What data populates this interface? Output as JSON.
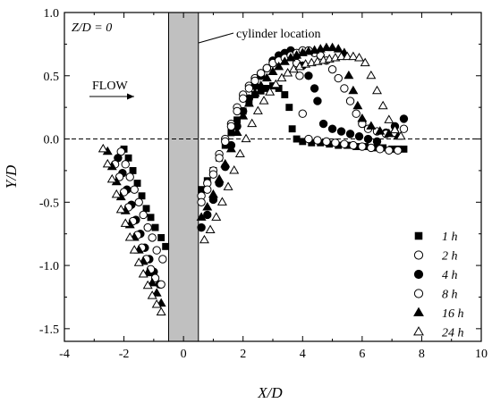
{
  "chart_data": {
    "type": "scatter",
    "title": "",
    "xlabel": "X/D",
    "ylabel": "Y/D",
    "xlim": [
      -4,
      10
    ],
    "ylim": [
      -1.6,
      1.0
    ],
    "xticks": [
      -4,
      -2,
      0,
      2,
      4,
      6,
      8,
      10
    ],
    "yticks": [
      -1.5,
      -1.0,
      -0.5,
      0.0,
      0.5,
      1.0
    ],
    "ytick_labels": [
      "-1.5",
      "-1.0",
      "-0.5",
      "0.0",
      "0.5",
      "1.0"
    ],
    "grid": false,
    "legend_position": "bottom-right",
    "zero_line": {
      "y": 0,
      "style": "dashed"
    },
    "cylinder_band": {
      "x": [
        -0.5,
        0.5
      ],
      "color": "#c0c0c0"
    },
    "annotations": {
      "condition": "Z/D = 0",
      "cylinder_label": "cylinder location",
      "flow_label": "FLOW"
    },
    "series": [
      {
        "name": "1 h",
        "marker": "square",
        "filled": true,
        "x": [
          -2.0,
          -1.85,
          -1.7,
          -1.55,
          -1.4,
          -1.25,
          -1.1,
          -0.95,
          -0.75,
          -0.6,
          0.6,
          0.8,
          1.0,
          1.2,
          1.4,
          1.6,
          1.8,
          2.0,
          2.2,
          2.4,
          2.6,
          2.8,
          3.0,
          3.2,
          3.4,
          3.55,
          3.65,
          3.8,
          4.0,
          4.3,
          4.6,
          4.9,
          5.2,
          5.5,
          5.8,
          6.1,
          6.4,
          6.7,
          7.0,
          7.2,
          7.4
        ],
        "y": [
          -0.08,
          -0.15,
          -0.25,
          -0.35,
          -0.45,
          -0.55,
          -0.62,
          -0.7,
          -0.78,
          -0.85,
          -0.4,
          -0.33,
          -0.25,
          -0.15,
          -0.05,
          0.05,
          0.15,
          0.22,
          0.3,
          0.35,
          0.38,
          0.4,
          0.42,
          0.4,
          0.35,
          0.25,
          0.08,
          0.0,
          -0.02,
          -0.03,
          -0.03,
          -0.04,
          -0.05,
          -0.05,
          -0.06,
          -0.06,
          -0.07,
          -0.07,
          -0.08,
          -0.08,
          -0.08
        ]
      },
      {
        "name": "2 h",
        "marker": "circle",
        "filled": false,
        "x": [
          -2.1,
          -1.95,
          -1.8,
          -1.65,
          -1.5,
          -1.35,
          -1.2,
          -1.05,
          -0.9,
          -0.7,
          0.6,
          0.8,
          1.0,
          1.2,
          1.4,
          1.6,
          1.8,
          2.0,
          2.2,
          2.4,
          2.6,
          2.8,
          3.0,
          3.2,
          3.4,
          3.6,
          3.8,
          3.9,
          4.0,
          4.2,
          4.5,
          4.8,
          5.1,
          5.4,
          5.7,
          6.0,
          6.3,
          6.6,
          6.9,
          7.2
        ],
        "y": [
          -0.1,
          -0.2,
          -0.3,
          -0.4,
          -0.5,
          -0.6,
          -0.7,
          -0.78,
          -0.88,
          -0.95,
          -0.45,
          -0.35,
          -0.25,
          -0.12,
          0.0,
          0.12,
          0.25,
          0.35,
          0.42,
          0.48,
          0.52,
          0.56,
          0.6,
          0.62,
          0.64,
          0.65,
          0.6,
          0.5,
          0.2,
          0.0,
          -0.01,
          -0.02,
          -0.03,
          -0.04,
          -0.05,
          -0.06,
          -0.07,
          -0.08,
          -0.09,
          -0.09
        ]
      },
      {
        "name": "4 h",
        "marker": "circle",
        "filled": true,
        "x": [
          -2.2,
          -2.05,
          -1.9,
          -1.75,
          -1.6,
          -1.45,
          -1.3,
          -1.15,
          -1.0,
          -0.8,
          0.6,
          0.8,
          1.0,
          1.2,
          1.4,
          1.6,
          1.8,
          2.0,
          2.2,
          2.4,
          2.6,
          2.8,
          3.0,
          3.2,
          3.4,
          3.6,
          3.8,
          4.0,
          4.2,
          4.4,
          4.5,
          4.7,
          5.0,
          5.3,
          5.6,
          5.9,
          6.2,
          6.5,
          6.8,
          7.1,
          7.4
        ],
        "y": [
          -0.15,
          -0.27,
          -0.4,
          -0.52,
          -0.64,
          -0.75,
          -0.86,
          -0.95,
          -1.05,
          -1.15,
          -0.7,
          -0.6,
          -0.48,
          -0.35,
          -0.22,
          -0.05,
          0.1,
          0.22,
          0.32,
          0.42,
          0.5,
          0.56,
          0.62,
          0.66,
          0.68,
          0.7,
          0.66,
          0.58,
          0.5,
          0.4,
          0.3,
          0.12,
          0.08,
          0.06,
          0.04,
          0.02,
          0.0,
          -0.02,
          0.05,
          0.1,
          0.16
        ]
      },
      {
        "name": "8 h",
        "marker": "circle",
        "filled": false,
        "x": [
          -2.3,
          -2.15,
          -2.0,
          -1.85,
          -1.7,
          -1.55,
          -1.4,
          -1.25,
          -1.1,
          -0.95,
          -0.75,
          0.6,
          0.8,
          1.0,
          1.2,
          1.4,
          1.6,
          1.8,
          2.0,
          2.2,
          2.4,
          2.6,
          2.8,
          3.0,
          3.2,
          3.4,
          3.6,
          3.8,
          4.0,
          4.2,
          4.4,
          4.6,
          4.8,
          5.0,
          5.2,
          5.4,
          5.6,
          5.8,
          6.0,
          6.2,
          6.5,
          6.8,
          7.1,
          7.4
        ],
        "y": [
          -0.2,
          -0.3,
          -0.42,
          -0.54,
          -0.65,
          -0.76,
          -0.86,
          -0.95,
          -1.03,
          -1.1,
          -1.15,
          -0.5,
          -0.4,
          -0.28,
          -0.15,
          -0.02,
          0.1,
          0.22,
          0.32,
          0.4,
          0.46,
          0.52,
          0.56,
          0.6,
          0.62,
          0.64,
          0.66,
          0.68,
          0.7,
          0.7,
          0.68,
          0.66,
          0.62,
          0.55,
          0.48,
          0.4,
          0.3,
          0.2,
          0.12,
          0.08,
          0.06,
          0.04,
          0.05,
          0.08
        ]
      },
      {
        "name": "16 h",
        "marker": "triangle",
        "filled": true,
        "x": [
          -2.55,
          -2.4,
          -2.25,
          -2.1,
          -1.95,
          -1.8,
          -1.65,
          -1.5,
          -1.35,
          -1.2,
          -1.05,
          -0.9,
          -0.75,
          0.6,
          0.8,
          1.0,
          1.2,
          1.4,
          1.6,
          1.8,
          2.0,
          2.2,
          2.4,
          2.6,
          2.8,
          3.0,
          3.2,
          3.4,
          3.6,
          3.8,
          4.0,
          4.2,
          4.4,
          4.6,
          4.8,
          5.0,
          5.2,
          5.4,
          5.55,
          5.7,
          5.85,
          6.0,
          6.3,
          6.6,
          6.9,
          7.2
        ],
        "y": [
          -0.1,
          -0.22,
          -0.34,
          -0.46,
          -0.57,
          -0.68,
          -0.78,
          -0.88,
          -0.97,
          -1.06,
          -1.14,
          -1.22,
          -1.3,
          -0.62,
          -0.54,
          -0.44,
          -0.32,
          -0.2,
          -0.08,
          0.05,
          0.18,
          0.28,
          0.36,
          0.42,
          0.48,
          0.53,
          0.57,
          0.61,
          0.64,
          0.66,
          0.68,
          0.69,
          0.7,
          0.71,
          0.72,
          0.72,
          0.71,
          0.68,
          0.5,
          0.38,
          0.26,
          0.16,
          0.1,
          0.06,
          0.04,
          0.02
        ]
      },
      {
        "name": "24 h",
        "marker": "triangle",
        "filled": false,
        "x": [
          -2.7,
          -2.55,
          -2.4,
          -2.25,
          -2.1,
          -1.95,
          -1.8,
          -1.65,
          -1.5,
          -1.35,
          -1.2,
          -1.05,
          -0.9,
          -0.75,
          0.7,
          0.9,
          1.1,
          1.3,
          1.5,
          1.7,
          1.9,
          2.1,
          2.3,
          2.5,
          2.7,
          2.9,
          3.1,
          3.3,
          3.5,
          3.7,
          3.9,
          4.1,
          4.3,
          4.5,
          4.7,
          4.9,
          5.1,
          5.3,
          5.5,
          5.7,
          5.9,
          6.1,
          6.3,
          6.5,
          6.7,
          6.9,
          7.1,
          7.3
        ],
        "y": [
          -0.08,
          -0.2,
          -0.32,
          -0.44,
          -0.56,
          -0.67,
          -0.78,
          -0.88,
          -0.98,
          -1.07,
          -1.16,
          -1.24,
          -1.31,
          -1.37,
          -0.8,
          -0.72,
          -0.62,
          -0.5,
          -0.38,
          -0.25,
          -0.12,
          0.0,
          0.12,
          0.22,
          0.3,
          0.37,
          0.43,
          0.48,
          0.52,
          0.55,
          0.57,
          0.59,
          0.6,
          0.61,
          0.62,
          0.63,
          0.64,
          0.65,
          0.65,
          0.65,
          0.64,
          0.6,
          0.5,
          0.38,
          0.26,
          0.15,
          0.07,
          0.02
        ]
      }
    ]
  }
}
